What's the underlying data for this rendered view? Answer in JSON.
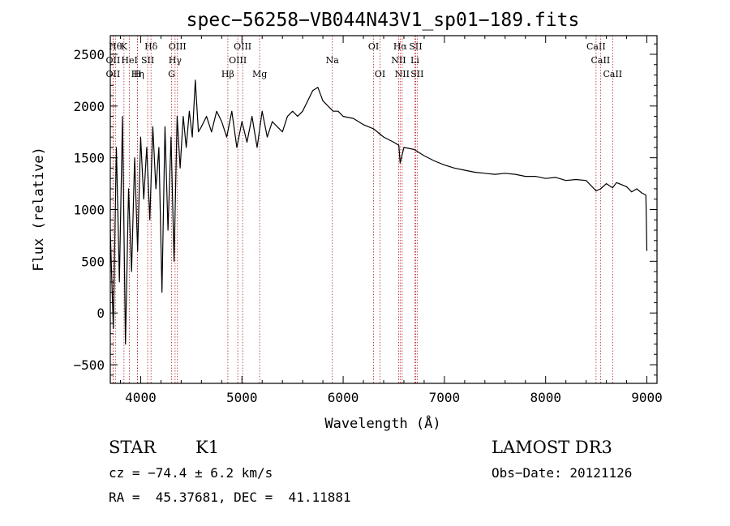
{
  "chart_data": {
    "type": "line",
    "title": "spec−56258−VB044N43V1_sp01−189.fits",
    "xlabel": "Wavelength (Å)",
    "ylabel": "Flux (relative)",
    "xlim": [
      3700,
      9100
    ],
    "ylim": [
      -680,
      2680
    ],
    "xticks": [
      4000,
      5000,
      6000,
      7000,
      8000,
      9000
    ],
    "yticks": [
      -500,
      0,
      500,
      1000,
      1500,
      2000,
      2500
    ],
    "grid": false,
    "series": [
      {
        "name": "flux",
        "x": [
          3700,
          3730,
          3760,
          3790,
          3820,
          3850,
          3880,
          3910,
          3940,
          3970,
          4000,
          4030,
          4060,
          4090,
          4120,
          4150,
          4180,
          4210,
          4240,
          4270,
          4300,
          4330,
          4360,
          4390,
          4420,
          4450,
          4480,
          4510,
          4540,
          4570,
          4600,
          4650,
          4700,
          4750,
          4800,
          4850,
          4900,
          4950,
          5000,
          5050,
          5100,
          5150,
          5200,
          5250,
          5300,
          5350,
          5400,
          5450,
          5500,
          5550,
          5600,
          5650,
          5700,
          5750,
          5800,
          5850,
          5900,
          5950,
          6000,
          6100,
          6200,
          6300,
          6400,
          6500,
          6550,
          6563,
          6600,
          6700,
          6800,
          6900,
          7000,
          7100,
          7200,
          7300,
          7400,
          7500,
          7600,
          7700,
          7800,
          7900,
          8000,
          8100,
          8200,
          8300,
          8400,
          8498,
          8542,
          8600,
          8662,
          8700,
          8800,
          8850,
          8900,
          8950,
          8990,
          9000
        ],
        "values": [
          800,
          -150,
          1600,
          300,
          1900,
          -300,
          1200,
          400,
          1500,
          600,
          1700,
          1100,
          1600,
          900,
          1800,
          1200,
          1600,
          200,
          1800,
          800,
          1700,
          500,
          1900,
          1400,
          1900,
          1600,
          1950,
          1700,
          2250,
          1750,
          1800,
          1900,
          1750,
          1950,
          1850,
          1700,
          1950,
          1600,
          1850,
          1650,
          1900,
          1600,
          1950,
          1700,
          1850,
          1800,
          1750,
          1900,
          1950,
          1900,
          1950,
          2050,
          2150,
          2180,
          2050,
          2000,
          1950,
          1950,
          1900,
          1880,
          1820,
          1780,
          1700,
          1650,
          1620,
          1450,
          1600,
          1580,
          1520,
          1470,
          1430,
          1400,
          1380,
          1360,
          1350,
          1340,
          1350,
          1340,
          1320,
          1320,
          1300,
          1310,
          1280,
          1290,
          1280,
          1180,
          1200,
          1250,
          1210,
          1260,
          1220,
          1170,
          1200,
          1160,
          1140,
          600
        ]
      }
    ],
    "lines": [
      {
        "wl": 3750,
        "label": "Hθ",
        "row": 0
      },
      {
        "wl": 3727,
        "label": "OII",
        "row": 1
      },
      {
        "wl": 3727,
        "label": "OII",
        "row": 2
      },
      {
        "wl": 3835,
        "label": "K",
        "row": 0
      },
      {
        "wl": 3889,
        "label": "HeI",
        "row": 1
      },
      {
        "wl": 3970,
        "label": "Hη",
        "row": 2
      },
      {
        "wl": 3968,
        "label": "H",
        "row": 2
      },
      {
        "wl": 4069,
        "label": "SII",
        "row": 1
      },
      {
        "wl": 4102,
        "label": "Hδ",
        "row": 0
      },
      {
        "wl": 4340,
        "label": "Hγ",
        "row": 1
      },
      {
        "wl": 4305,
        "label": "G",
        "row": 2
      },
      {
        "wl": 4363,
        "label": "OIII",
        "row": 0
      },
      {
        "wl": 4861,
        "label": "Hβ",
        "row": 2
      },
      {
        "wl": 4959,
        "label": "OIII",
        "row": 1
      },
      {
        "wl": 5007,
        "label": "OIII",
        "row": 0
      },
      {
        "wl": 5175,
        "label": "Mg",
        "row": 2
      },
      {
        "wl": 5893,
        "label": "Na",
        "row": 1
      },
      {
        "wl": 6300,
        "label": "OI",
        "row": 0
      },
      {
        "wl": 6364,
        "label": "OI",
        "row": 2
      },
      {
        "wl": 6548,
        "label": "NII",
        "row": 1
      },
      {
        "wl": 6563,
        "label": "Hα",
        "row": 0
      },
      {
        "wl": 6583,
        "label": "NII",
        "row": 2
      },
      {
        "wl": 6708,
        "label": "Li",
        "row": 1
      },
      {
        "wl": 6716,
        "label": "SII",
        "row": 0
      },
      {
        "wl": 6731,
        "label": "SII",
        "row": 2
      },
      {
        "wl": 8498,
        "label": "CaII",
        "row": 0
      },
      {
        "wl": 8542,
        "label": "CaII",
        "row": 1
      },
      {
        "wl": 8662,
        "label": "CaII",
        "row": 2
      }
    ]
  },
  "info": {
    "class_label": "STAR",
    "subclass": "K1",
    "cz": "cz = −74.4 ± 6.2 km/s",
    "coords": "RA =  45.37681, DEC =  41.11881",
    "survey": "LAMOST DR3",
    "obs_date": "Obs−Date: 20121126"
  }
}
